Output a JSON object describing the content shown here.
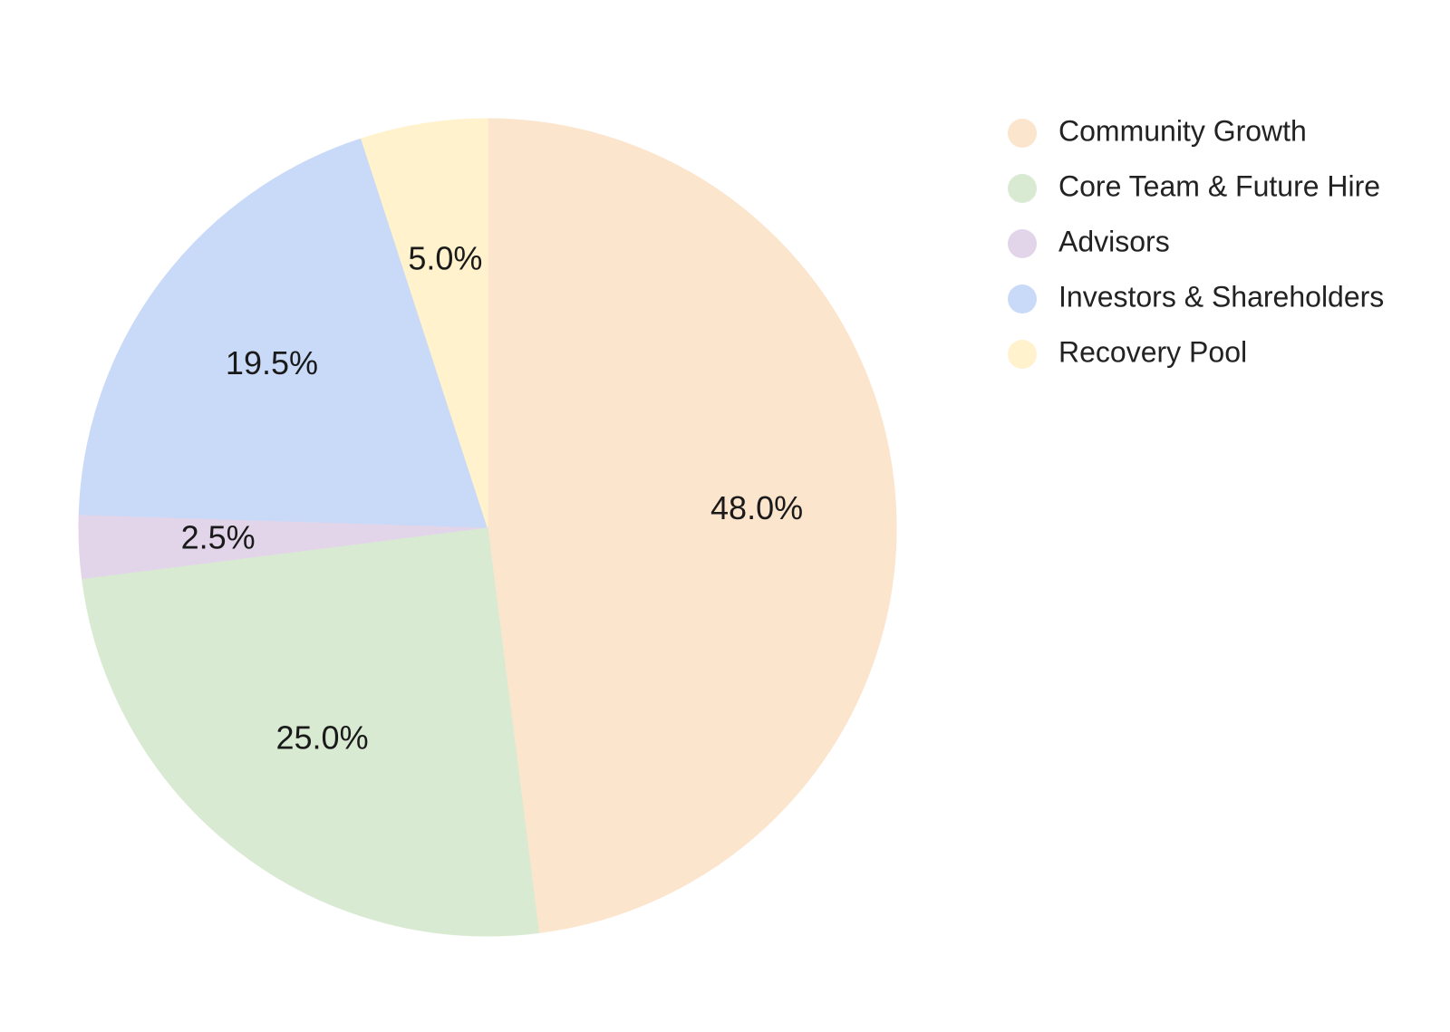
{
  "chart_data": {
    "type": "pie",
    "slices": [
      {
        "label": "Community Growth",
        "value": 48.0,
        "value_label": "48.0%",
        "color": "#fce5cd"
      },
      {
        "label": "Core Team & Future Hire",
        "value": 25.0,
        "value_label": "25.0%",
        "color": "#d9ead3"
      },
      {
        "label": "Advisors",
        "value": 2.5,
        "value_label": "2.5%",
        "color": "#e2d5ea"
      },
      {
        "label": "Investors & Shareholders",
        "value": 19.5,
        "value_label": "19.5%",
        "color": "#c9daf8"
      },
      {
        "label": "Recovery Pool",
        "value": 5.0,
        "value_label": "5.0%",
        "color": "#fff2cc"
      }
    ],
    "start_angle_deg": 0,
    "direction": "clockwise",
    "legend_position": "right"
  }
}
